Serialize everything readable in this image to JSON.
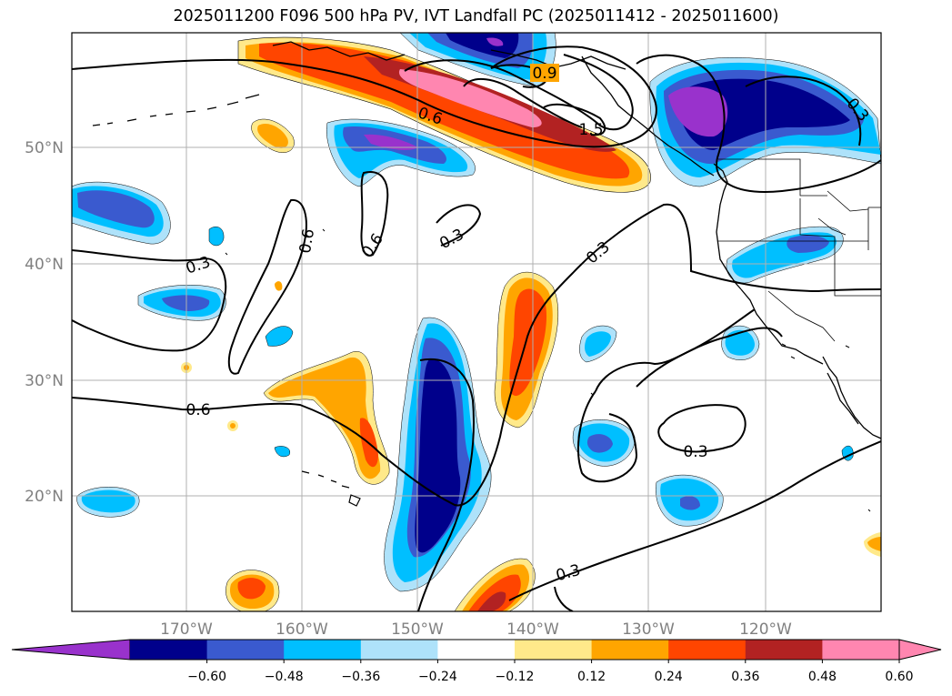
{
  "title": "2025011200 F096 500 hPa PV, IVT Landfall PC (2025011412 - 2025011600)",
  "map": {
    "lon_labels": [
      "170°W",
      "160°W",
      "150°W",
      "140°W",
      "130°W",
      "120°W"
    ],
    "lat_labels": [
      "50°N",
      "40°N",
      "30°N",
      "20°N"
    ],
    "contour_labels": [
      "0.9",
      "0.6",
      "1.5",
      "0.3",
      "0.3",
      "0.6",
      "0.6",
      "0.3",
      "0.3",
      "0.6",
      "0.3",
      "0.3"
    ]
  },
  "colorbar": {
    "ticks": [
      "−0.60",
      "−0.48",
      "−0.36",
      "−0.24",
      "−0.12",
      "0.12",
      "0.24",
      "0.36",
      "0.48",
      "0.60"
    ],
    "colors": [
      "#9932cc",
      "#00008b",
      "#3a5acf",
      "#00bfff",
      "#aee2fa",
      "#ffffff",
      "#ffe98a",
      "#ffa500",
      "#ff4500",
      "#b22222",
      "#ff86b0",
      "#ff86b0"
    ]
  },
  "colors": {
    "purple": "#9932cc",
    "navy": "#00008b",
    "royal": "#3a5acf",
    "sky": "#00bfff",
    "pale_blue": "#aee2fa",
    "pale_yellow": "#ffe98a",
    "orange": "#ffa500",
    "red_orange": "#ff4500",
    "firebrick": "#b22222",
    "pink": "#ff86b0",
    "grid": "#b0b0b0",
    "coast": "#000000",
    "tick_text": "#808080"
  }
}
